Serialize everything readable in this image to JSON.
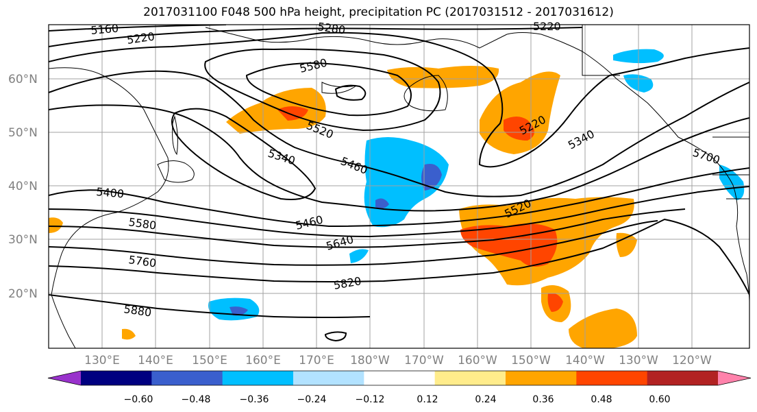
{
  "title": "2017031100 F048 500 hPa height, precipitation PC (2017031512 - 2017031612)",
  "lat_labels": [
    "60°N",
    "50°N",
    "40°N",
    "30°N",
    "20°N"
  ],
  "lon_labels": [
    "130°E",
    "140°E",
    "150°E",
    "160°E",
    "170°E",
    "180°W",
    "170°W",
    "160°W",
    "150°W",
    "140°W",
    "130°W",
    "120°W"
  ],
  "contour_labels": [
    {
      "text": "5160",
      "angle": -5
    },
    {
      "text": "5220",
      "angle": -8
    },
    {
      "text": "5280",
      "angle": 8
    },
    {
      "text": "5220",
      "angle": 0
    },
    {
      "text": "5580",
      "angle": -14
    },
    {
      "text": "5520",
      "angle": 22
    },
    {
      "text": "5460",
      "angle": 22
    },
    {
      "text": "5340",
      "angle": 18
    },
    {
      "text": "5400",
      "angle": 5
    },
    {
      "text": "5580",
      "angle": 8
    },
    {
      "text": "5460",
      "angle": -14
    },
    {
      "text": "5640",
      "angle": -16
    },
    {
      "text": "5760",
      "angle": 8
    },
    {
      "text": "5820",
      "angle": -10
    },
    {
      "text": "5880",
      "angle": 8
    },
    {
      "text": "5520",
      "angle": -26
    },
    {
      "text": "5220",
      "angle": -28
    },
    {
      "text": "5340",
      "angle": -28
    },
    {
      "text": "5700",
      "angle": 18
    }
  ],
  "colorbar": {
    "colors": [
      "#9932cc",
      "#000080",
      "#3a5fcd",
      "#00bfff",
      "#b2e2ff",
      "#ffffff",
      "#ffec8b",
      "#ffa500",
      "#ff4500",
      "#b22222",
      "#ff82ab"
    ],
    "ticks": [
      "−0.60",
      "−0.48",
      "−0.36",
      "−0.24",
      "−0.12",
      "0.12",
      "0.24",
      "0.36",
      "0.48",
      "0.60"
    ]
  }
}
